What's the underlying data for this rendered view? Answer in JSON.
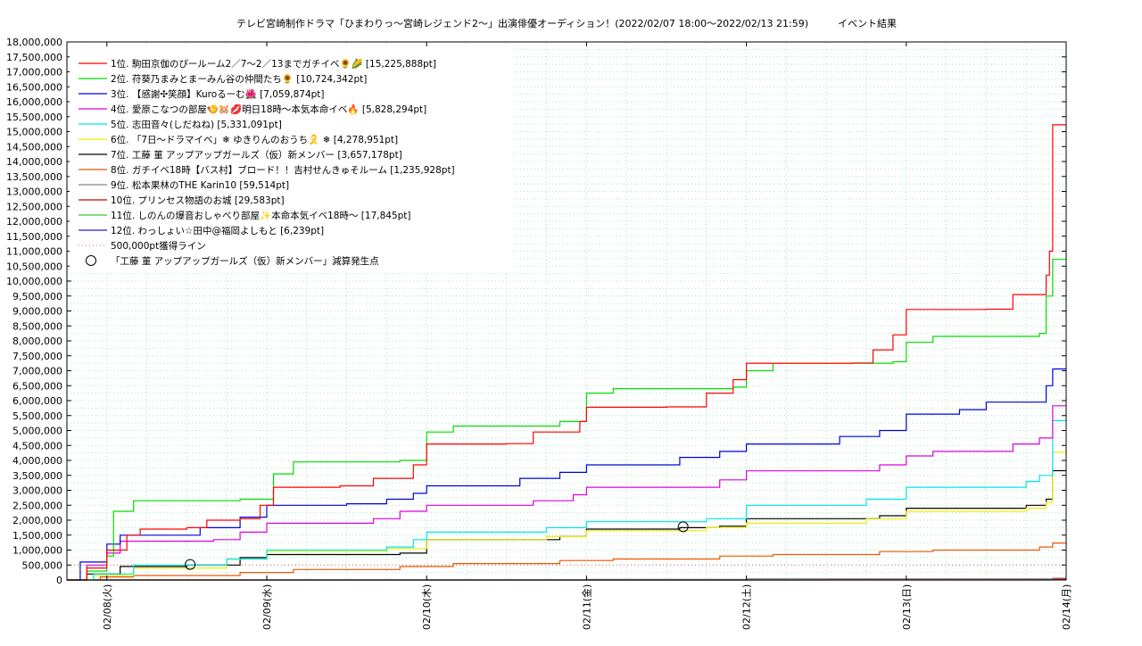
{
  "chart_data": {
    "type": "line",
    "title": "テレビ宮崎制作ドラマ「ひまわりっ～宮崎レジェンド2～」出演俳優オーディション！(2022/02/07 18:00～2022/02/13 21:59)　　　イベント結果",
    "xlabel": "",
    "ylabel": "",
    "ylim": [
      0,
      18000000
    ],
    "y_ticks": [
      0,
      500000,
      1000000,
      1500000,
      2000000,
      2500000,
      3000000,
      3500000,
      4000000,
      4500000,
      5000000,
      5500000,
      6000000,
      6500000,
      7000000,
      7500000,
      8000000,
      8500000,
      9000000,
      9500000,
      10000000,
      10500000,
      11000000,
      11500000,
      12000000,
      12500000,
      13000000,
      13500000,
      14000000,
      14500000,
      15000000,
      15500000,
      16000000,
      16500000,
      17000000,
      17500000,
      18000000
    ],
    "y_tick_labels": [
      "0",
      "500,000",
      "1,000,000",
      "1,500,000",
      "2,000,000",
      "2,500,000",
      "3,000,000",
      "3,500,000",
      "4,000,000",
      "4,500,000",
      "5,000,000",
      "5,500,000",
      "6,000,000",
      "6,500,000",
      "7,000,000",
      "7,500,000",
      "8,000,000",
      "8,500,000",
      "9,000,000",
      "9,500,000",
      "10,000,000",
      "10,500,000",
      "11,000,000",
      "11,500,000",
      "12,000,000",
      "12,500,000",
      "13,000,000",
      "13,500,000",
      "14,000,000",
      "14,500,000",
      "15,000,000",
      "15,500,000",
      "16,000,000",
      "16,500,000",
      "17,000,000",
      "17,500,000",
      "18,000,000"
    ],
    "xlim": [
      "2022-02-07 18:00",
      "2022-02-14 00:00"
    ],
    "x_ticks": [
      "2022-02-08 00:00",
      "2022-02-09 00:00",
      "2022-02-10 00:00",
      "2022-02-11 00:00",
      "2022-02-12 00:00",
      "2022-02-13 00:00",
      "2022-02-14 00:00"
    ],
    "x_tick_labels": [
      "02/08(火)",
      "02/09(水)",
      "02/10(木)",
      "02/11(金)",
      "02/12(土)",
      "02/13(日)",
      "02/14(月)"
    ],
    "grid": true,
    "legend_position": "top-left",
    "series": [
      {
        "name": "1位. 駒田京伽のぴールーム2／7～2／13までガチイベ🌻🌽 [15,225,888pt]",
        "color": "#ff0000",
        "points": [
          [
            "2022-02-07 18:00",
            0
          ],
          [
            "2022-02-07 21:00",
            400000
          ],
          [
            "2022-02-08 00:00",
            1000000
          ],
          [
            "2022-02-08 03:00",
            1500000
          ],
          [
            "2022-02-08 05:00",
            1700000
          ],
          [
            "2022-02-08 12:00",
            1750000
          ],
          [
            "2022-02-08 15:00",
            2000000
          ],
          [
            "2022-02-08 20:00",
            2050000
          ],
          [
            "2022-02-08 23:00",
            2500000
          ],
          [
            "2022-02-09 01:00",
            3100000
          ],
          [
            "2022-02-09 11:00",
            3150000
          ],
          [
            "2022-02-09 16:00",
            3400000
          ],
          [
            "2022-02-09 22:00",
            3850000
          ],
          [
            "2022-02-10 00:00",
            4550000
          ],
          [
            "2022-02-10 12:00",
            4560000
          ],
          [
            "2022-02-10 16:00",
            4950000
          ],
          [
            "2022-02-10 23:00",
            5300000
          ],
          [
            "2022-02-11 00:00",
            5780000
          ],
          [
            "2022-02-11 12:00",
            5790000
          ],
          [
            "2022-02-11 18:00",
            6250000
          ],
          [
            "2022-02-11 22:00",
            6700000
          ],
          [
            "2022-02-12 00:00",
            7250000
          ],
          [
            "2022-02-12 16:00",
            7260000
          ],
          [
            "2022-02-12 19:00",
            7700000
          ],
          [
            "2022-02-12 22:00",
            8200000
          ],
          [
            "2022-02-13 00:00",
            9050000
          ],
          [
            "2022-02-13 12:00",
            9060000
          ],
          [
            "2022-02-13 16:00",
            9550000
          ],
          [
            "2022-02-13 21:00",
            10200000
          ],
          [
            "2022-02-13 21:30",
            11000000
          ],
          [
            "2022-02-13 21:59",
            15225888
          ],
          [
            "2022-02-14 00:00",
            15225888
          ]
        ]
      },
      {
        "name": "2位. 苻葵乃まみとまーみん谷の仲間たち🌻 [10,724,342pt]",
        "color": "#00dd00",
        "points": [
          [
            "2022-02-07 18:00",
            0
          ],
          [
            "2022-02-07 21:00",
            300000
          ],
          [
            "2022-02-08 00:00",
            800000
          ],
          [
            "2022-02-08 01:00",
            2300000
          ],
          [
            "2022-02-08 04:00",
            2650000
          ],
          [
            "2022-02-08 20:00",
            2700000
          ],
          [
            "2022-02-09 01:00",
            3550000
          ],
          [
            "2022-02-09 04:00",
            3950000
          ],
          [
            "2022-02-09 20:00",
            4000000
          ],
          [
            "2022-02-10 00:00",
            4950000
          ],
          [
            "2022-02-10 04:00",
            5150000
          ],
          [
            "2022-02-10 20:00",
            5300000
          ],
          [
            "2022-02-11 00:00",
            6250000
          ],
          [
            "2022-02-11 04:00",
            6400000
          ],
          [
            "2022-02-11 22:00",
            6450000
          ],
          [
            "2022-02-12 00:00",
            7000000
          ],
          [
            "2022-02-12 04:00",
            7250000
          ],
          [
            "2022-02-12 22:00",
            7300000
          ],
          [
            "2022-02-13 00:00",
            7950000
          ],
          [
            "2022-02-13 04:00",
            8150000
          ],
          [
            "2022-02-13 20:00",
            8250000
          ],
          [
            "2022-02-13 21:00",
            9500000
          ],
          [
            "2022-02-13 21:59",
            10724342
          ],
          [
            "2022-02-14 00:00",
            10724342
          ]
        ]
      },
      {
        "name": "3位. 【感謝✣笑顔】Kuroるーむ🌺 [7,059,874pt]",
        "color": "#0000dd",
        "points": [
          [
            "2022-02-07 18:00",
            0
          ],
          [
            "2022-02-07 20:00",
            600000
          ],
          [
            "2022-02-08 00:00",
            1200000
          ],
          [
            "2022-02-08 02:00",
            1500000
          ],
          [
            "2022-02-08 14:00",
            1750000
          ],
          [
            "2022-02-08 20:00",
            2100000
          ],
          [
            "2022-02-09 00:00",
            2500000
          ],
          [
            "2022-02-09 12:00",
            2550000
          ],
          [
            "2022-02-09 18:00",
            2700000
          ],
          [
            "2022-02-09 22:00",
            2900000
          ],
          [
            "2022-02-10 00:00",
            3150000
          ],
          [
            "2022-02-10 14:00",
            3400000
          ],
          [
            "2022-02-10 20:00",
            3600000
          ],
          [
            "2022-02-11 00:00",
            3850000
          ],
          [
            "2022-02-11 14:00",
            4100000
          ],
          [
            "2022-02-11 20:00",
            4300000
          ],
          [
            "2022-02-12 00:00",
            4550000
          ],
          [
            "2022-02-12 14:00",
            4800000
          ],
          [
            "2022-02-12 20:00",
            5000000
          ],
          [
            "2022-02-13 00:00",
            5550000
          ],
          [
            "2022-02-13 08:00",
            5700000
          ],
          [
            "2022-02-13 12:00",
            5950000
          ],
          [
            "2022-02-13 21:00",
            6500000
          ],
          [
            "2022-02-13 21:59",
            7059874
          ],
          [
            "2022-02-14 00:00",
            7059874
          ]
        ]
      },
      {
        "name": "4位. 愛原こなつの部屋🍤🐹💋明日18時～本気本命イベ🔥 [5,828,294pt]",
        "color": "#dd00dd",
        "points": [
          [
            "2022-02-07 18:00",
            0
          ],
          [
            "2022-02-07 21:00",
            500000
          ],
          [
            "2022-02-08 00:00",
            900000
          ],
          [
            "2022-02-08 02:00",
            1300000
          ],
          [
            "2022-02-08 16:00",
            1350000
          ],
          [
            "2022-02-08 20:00",
            1600000
          ],
          [
            "2022-02-09 00:00",
            1900000
          ],
          [
            "2022-02-09 16:00",
            2050000
          ],
          [
            "2022-02-09 20:00",
            2300000
          ],
          [
            "2022-02-10 00:00",
            2500000
          ],
          [
            "2022-02-10 16:00",
            2650000
          ],
          [
            "2022-02-10 22:00",
            2850000
          ],
          [
            "2022-02-11 00:00",
            3100000
          ],
          [
            "2022-02-11 20:00",
            3350000
          ],
          [
            "2022-02-12 00:00",
            3650000
          ],
          [
            "2022-02-12 20:00",
            3850000
          ],
          [
            "2022-02-13 00:00",
            4150000
          ],
          [
            "2022-02-13 04:00",
            4300000
          ],
          [
            "2022-02-13 16:00",
            4550000
          ],
          [
            "2022-02-13 20:00",
            4750000
          ],
          [
            "2022-02-13 21:59",
            5828294
          ],
          [
            "2022-02-14 00:00",
            5828294
          ]
        ]
      },
      {
        "name": "5位. 志田音々(しだねね) [5,331,091pt]",
        "color": "#00e5e5",
        "points": [
          [
            "2022-02-07 18:00",
            0
          ],
          [
            "2022-02-07 22:00",
            200000
          ],
          [
            "2022-02-08 04:00",
            500000
          ],
          [
            "2022-02-08 18:00",
            700000
          ],
          [
            "2022-02-09 00:00",
            1000000
          ],
          [
            "2022-02-09 18:00",
            1100000
          ],
          [
            "2022-02-09 22:00",
            1350000
          ],
          [
            "2022-02-10 00:00",
            1600000
          ],
          [
            "2022-02-10 18:00",
            1750000
          ],
          [
            "2022-02-11 00:00",
            1950000
          ],
          [
            "2022-02-11 18:00",
            2050000
          ],
          [
            "2022-02-12 00:00",
            2500000
          ],
          [
            "2022-02-12 18:00",
            2700000
          ],
          [
            "2022-02-13 00:00",
            3100000
          ],
          [
            "2022-02-13 18:00",
            3300000
          ],
          [
            "2022-02-13 20:00",
            3500000
          ],
          [
            "2022-02-13 21:59",
            5331091
          ],
          [
            "2022-02-14 00:00",
            5331091
          ]
        ]
      },
      {
        "name": "6位. 「7日～ドラマイベ」❄ ゆきりんのおうち🎗️ ❄ [4,278,951pt]",
        "color": "#eeee00",
        "points": [
          [
            "2022-02-07 18:00",
            0
          ],
          [
            "2022-02-07 22:00",
            150000
          ],
          [
            "2022-02-08 04:00",
            400000
          ],
          [
            "2022-02-08 18:00",
            700000
          ],
          [
            "2022-02-09 00:00",
            950000
          ],
          [
            "2022-02-09 18:00",
            1050000
          ],
          [
            "2022-02-10 00:00",
            1350000
          ],
          [
            "2022-02-10 18:00",
            1450000
          ],
          [
            "2022-02-11 00:00",
            1650000
          ],
          [
            "2022-02-11 18:00",
            1750000
          ],
          [
            "2022-02-12 00:00",
            1900000
          ],
          [
            "2022-02-12 18:00",
            2050000
          ],
          [
            "2022-02-13 00:00",
            2300000
          ],
          [
            "2022-02-13 18:00",
            2400000
          ],
          [
            "2022-02-13 21:00",
            2600000
          ],
          [
            "2022-02-13 21:59",
            4278951
          ],
          [
            "2022-02-14 00:00",
            4278951
          ]
        ]
      },
      {
        "name": "7位. 工藤 菫 アップアップガールズ（仮）新メンバー [3,657,178pt]",
        "color": "#000000",
        "points": [
          [
            "2022-02-07 18:00",
            0
          ],
          [
            "2022-02-07 21:00",
            200000
          ],
          [
            "2022-02-08 02:00",
            450000
          ],
          [
            "2022-02-08 12:00",
            500000
          ],
          [
            "2022-02-08 20:00",
            750000
          ],
          [
            "2022-02-09 00:00",
            850000
          ],
          [
            "2022-02-09 20:00",
            900000
          ],
          [
            "2022-02-10 00:00",
            1350000
          ],
          [
            "2022-02-10 20:00",
            1450000
          ],
          [
            "2022-02-11 00:00",
            1700000
          ],
          [
            "2022-02-11 14:00",
            1750000
          ],
          [
            "2022-02-11 20:00",
            1800000
          ],
          [
            "2022-02-12 00:00",
            2050000
          ],
          [
            "2022-02-12 20:00",
            2150000
          ],
          [
            "2022-02-13 00:00",
            2400000
          ],
          [
            "2022-02-13 18:00",
            2500000
          ],
          [
            "2022-02-13 21:00",
            2700000
          ],
          [
            "2022-02-13 21:59",
            3657178
          ],
          [
            "2022-02-14 00:00",
            3657178
          ]
        ]
      },
      {
        "name": "8位. ガチイベ18時【バス村】ブロード！！吉村せんきゅそルーム [1,235,928pt]",
        "color": "#ee5500",
        "points": [
          [
            "2022-02-07 18:00",
            0
          ],
          [
            "2022-02-07 23:00",
            100000
          ],
          [
            "2022-02-08 04:00",
            150000
          ],
          [
            "2022-02-08 20:00",
            250000
          ],
          [
            "2022-02-09 04:00",
            350000
          ],
          [
            "2022-02-09 20:00",
            450000
          ],
          [
            "2022-02-10 04:00",
            550000
          ],
          [
            "2022-02-10 20:00",
            650000
          ],
          [
            "2022-02-11 04:00",
            700000
          ],
          [
            "2022-02-11 20:00",
            800000
          ],
          [
            "2022-02-12 04:00",
            850000
          ],
          [
            "2022-02-12 20:00",
            950000
          ],
          [
            "2022-02-13 04:00",
            1000000
          ],
          [
            "2022-02-13 20:00",
            1100000
          ],
          [
            "2022-02-13 21:59",
            1235928
          ],
          [
            "2022-02-14 00:00",
            1235928
          ]
        ]
      },
      {
        "name": "9位. 松本果林のTHE Karin10 [59,514pt]",
        "color": "#888888",
        "points": [
          [
            "2022-02-07 18:00",
            0
          ],
          [
            "2022-02-11 00:00",
            20000
          ],
          [
            "2022-02-12 00:00",
            40000
          ],
          [
            "2022-02-13 21:59",
            59514
          ],
          [
            "2022-02-14 00:00",
            59514
          ]
        ]
      },
      {
        "name": "10位. プリンセス物語のお城 [29,583pt]",
        "color": "#cc0000",
        "points": [
          [
            "2022-02-07 18:00",
            0
          ],
          [
            "2022-02-12 12:00",
            10000
          ],
          [
            "2022-02-13 21:59",
            29583
          ],
          [
            "2022-02-14 00:00",
            29583
          ]
        ]
      },
      {
        "name": "11位. しのんの爆音おしゃべり部屋✨本命本気イベ18時～ [17,845pt]",
        "color": "#33cc33",
        "points": [
          [
            "2022-02-07 18:00",
            0
          ],
          [
            "2022-02-12 00:00",
            5000
          ],
          [
            "2022-02-13 21:59",
            17845
          ],
          [
            "2022-02-14 00:00",
            17845
          ]
        ]
      },
      {
        "name": "12位. わっしょい☆田中@福岡よしもと [6,239pt]",
        "color": "#2222cc",
        "points": [
          [
            "2022-02-07 18:00",
            0
          ],
          [
            "2022-02-13 21:59",
            6239
          ],
          [
            "2022-02-14 00:00",
            6239
          ]
        ]
      }
    ],
    "reference_line": {
      "name": "500,000pt獲得ライン",
      "value": 500000,
      "color": "#cc6666"
    },
    "markers": {
      "name": "「工藤 菫 アップアップガールズ（仮）新メンバー」減算発生点",
      "points": [
        [
          "2022-02-08 12:30",
          520000
        ],
        [
          "2022-02-11 14:30",
          1780000
        ]
      ]
    }
  }
}
